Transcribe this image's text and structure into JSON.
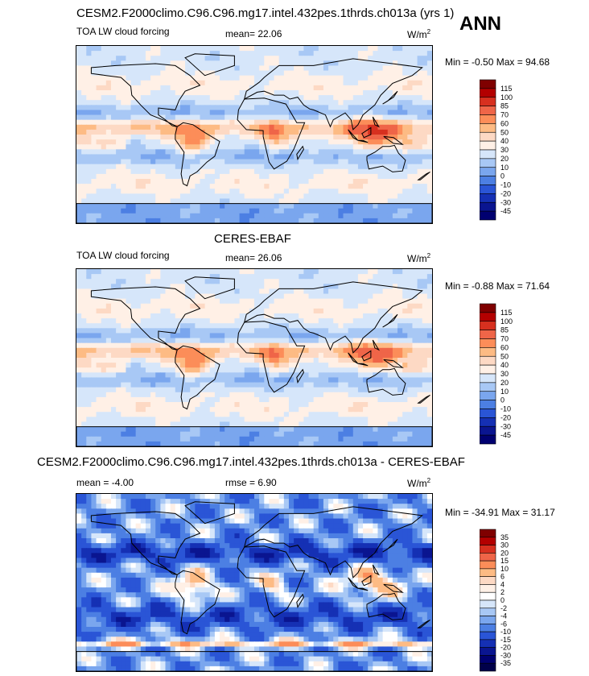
{
  "header": {
    "main_title": "CESM2.F2000climo.C96.C96.mg17.intel.432pes.1thrds.ch013a (yrs 1)",
    "season": "ANN"
  },
  "panels": [
    {
      "title": "",
      "left_label": "TOA LW cloud forcing",
      "center_label": "mean=  22.06",
      "units_base": "W/m",
      "units_exp": "2",
      "minmax": "Min =  -0.50 Max =  94.68",
      "levels": [
        "115",
        "100",
        "85",
        "70",
        "60",
        "50",
        "40",
        "30",
        "20",
        "10",
        "0",
        "-10",
        "-20",
        "-30",
        "-45"
      ]
    },
    {
      "title": "CERES-EBAF",
      "left_label": "TOA LW cloud forcing",
      "center_label": "mean=  26.06",
      "units_base": "W/m",
      "units_exp": "2",
      "minmax": "Min =  -0.88 Max =  71.64",
      "levels": [
        "115",
        "100",
        "85",
        "70",
        "60",
        "50",
        "40",
        "30",
        "20",
        "10",
        "0",
        "-10",
        "-20",
        "-30",
        "-45"
      ]
    },
    {
      "title": "CESM2.F2000climo.C96.C96.mg17.intel.432pes.1thrds.ch013a - CERES-EBAF",
      "left_label": "mean =  -4.00",
      "center_label": "rmse =   6.90",
      "units_base": "W/m",
      "units_exp": "2",
      "minmax": "Min = -34.91 Max =  31.17",
      "levels": [
        "35",
        "30",
        "20",
        "15",
        "10",
        "6",
        "4",
        "2",
        "0",
        "-2",
        "-4",
        "-6",
        "-10",
        "-15",
        "-20",
        "-30",
        "-35"
      ]
    }
  ],
  "colors": {
    "abs_scale": [
      "#7f0000",
      "#b30000",
      "#d7301f",
      "#ef6548",
      "#fc8d59",
      "#fdbb84",
      "#fdd9c4",
      "#fff0e6",
      "#d6e6fa",
      "#a8c8f5",
      "#7aa6ee",
      "#4c7fe3",
      "#2a55d6",
      "#1530b4",
      "#0a1590",
      "#000070"
    ],
    "diff_scale": [
      "#7f0000",
      "#b30000",
      "#d7301f",
      "#ef6548",
      "#fc8d59",
      "#fdbb84",
      "#fdd9c4",
      "#fff0e6",
      "#ffffff",
      "#d6e6fa",
      "#a8c8f5",
      "#7aa6ee",
      "#4c7fe3",
      "#2a55d6",
      "#1530b4",
      "#0a1590",
      "#000070",
      "#00004a"
    ]
  },
  "chart_data": [
    {
      "type": "heatmap",
      "title": "",
      "subtitle": "TOA LW cloud forcing",
      "mean": 22.06,
      "min": -0.5,
      "max": 94.68,
      "units": "W/m2",
      "contour_levels": [
        115,
        100,
        85,
        70,
        60,
        50,
        40,
        30,
        20,
        10,
        0,
        -10,
        -20,
        -30,
        -45
      ]
    },
    {
      "type": "heatmap",
      "title": "CERES-EBAF",
      "subtitle": "TOA LW cloud forcing",
      "mean": 26.06,
      "min": -0.88,
      "max": 71.64,
      "units": "W/m2",
      "contour_levels": [
        115,
        100,
        85,
        70,
        60,
        50,
        40,
        30,
        20,
        10,
        0,
        -10,
        -20,
        -30,
        -45
      ]
    },
    {
      "type": "heatmap",
      "title": "CESM2.F2000climo.C96.C96.mg17.intel.432pes.1thrds.ch013a - CERES-EBAF",
      "mean": -4.0,
      "rmse": 6.9,
      "min": -34.91,
      "max": 31.17,
      "units": "W/m2",
      "contour_levels": [
        35,
        30,
        20,
        15,
        10,
        6,
        4,
        2,
        0,
        -2,
        -4,
        -6,
        -10,
        -15,
        -20,
        -30,
        -35
      ]
    }
  ]
}
